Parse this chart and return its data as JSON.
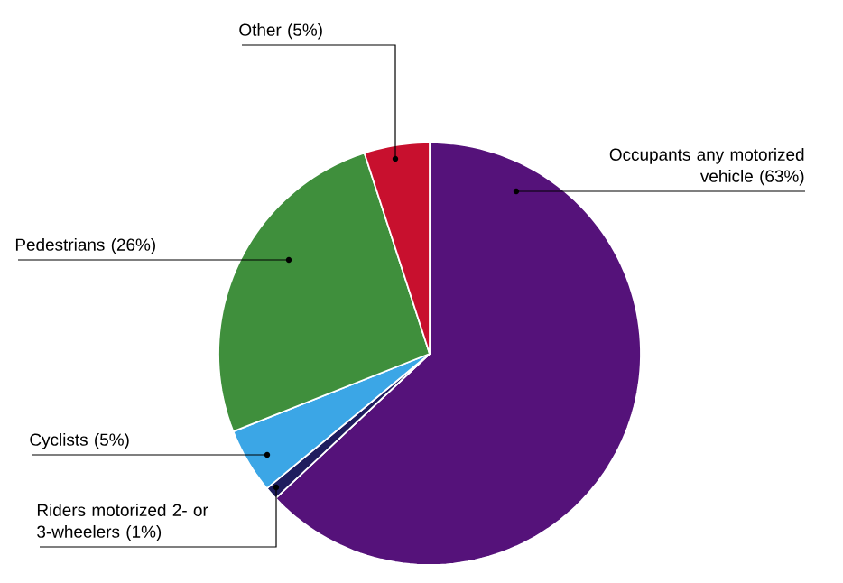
{
  "chart_data": {
    "type": "pie",
    "categories": [
      "Occupants any motorized vehicle",
      "Riders motorized 2- or 3-wheelers",
      "Cyclists",
      "Pedestrians",
      "Other"
    ],
    "values": [
      63,
      1,
      5,
      26,
      5
    ],
    "value_labels": [
      "(63%)",
      "(1%)",
      "(5%)",
      "(26%)",
      "(5%)"
    ],
    "colors": [
      "#55127a",
      "#1f1d5e",
      "#3ba6e6",
      "#3f8f3c",
      "#c8102e"
    ]
  }
}
